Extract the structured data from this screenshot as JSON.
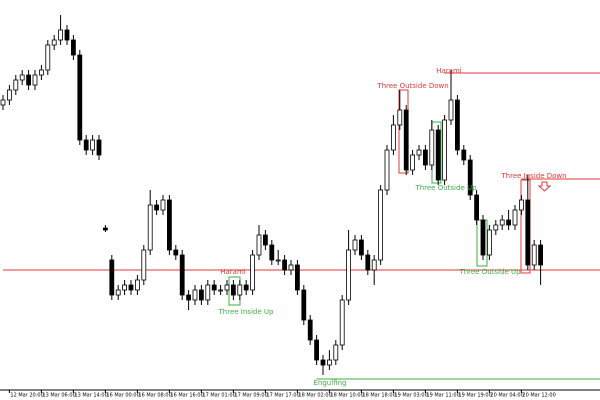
{
  "chart_data": {
    "type": "candlestick",
    "ylim": [
      10,
      400
    ],
    "bull_color": "#ffffff",
    "bear_color": "#000000",
    "outline_color": "#000000",
    "xticks": [
      {
        "value": 1,
        "label": "12 Mar 20:00"
      },
      {
        "value": 6,
        "label": "13 Mar 06:00"
      },
      {
        "value": 11,
        "label": "13 Mar 14:00"
      },
      {
        "value": 16,
        "label": "16 Mar 00:00"
      },
      {
        "value": 21,
        "label": "16 Mar 08:00"
      },
      {
        "value": 26,
        "label": "16 Mar 16:00"
      },
      {
        "value": 31,
        "label": "17 Mar 01:00"
      },
      {
        "value": 36,
        "label": "17 Mar 09:00"
      },
      {
        "value": 41,
        "label": "17 Mar 17:00"
      },
      {
        "value": 46,
        "label": "18 Mar 02:00"
      },
      {
        "value": 51,
        "label": "18 Mar 10:00"
      },
      {
        "value": 56,
        "label": "18 Mar 18:00"
      },
      {
        "value": 61,
        "label": "19 Mar 03:00"
      },
      {
        "value": 66,
        "label": "19 Mar 11:00"
      },
      {
        "value": 71,
        "label": "19 Mar 19:00"
      },
      {
        "value": 76,
        "label": "20 Mar 04:00"
      },
      {
        "value": 81,
        "label": "20 Mar 12:00"
      }
    ],
    "ohlc": [
      [
        295,
        305,
        290,
        300
      ],
      [
        300,
        315,
        295,
        310
      ],
      [
        310,
        325,
        305,
        320
      ],
      [
        320,
        330,
        315,
        325
      ],
      [
        325,
        330,
        310,
        315
      ],
      [
        315,
        330,
        310,
        325
      ],
      [
        325,
        335,
        320,
        330
      ],
      [
        330,
        360,
        325,
        355
      ],
      [
        355,
        365,
        350,
        360
      ],
      [
        360,
        385,
        355,
        370
      ],
      [
        370,
        375,
        355,
        360
      ],
      [
        360,
        365,
        340,
        345
      ],
      [
        345,
        350,
        255,
        260
      ],
      [
        260,
        265,
        245,
        250
      ],
      [
        250,
        265,
        245,
        260
      ],
      [
        260,
        265,
        240,
        245
      ],
      [
        172,
        175,
        168,
        170
      ],
      [
        140,
        145,
        100,
        105
      ],
      [
        105,
        115,
        100,
        110
      ],
      [
        110,
        120,
        105,
        115
      ],
      [
        115,
        120,
        105,
        110
      ],
      [
        110,
        125,
        105,
        120
      ],
      [
        120,
        155,
        115,
        150
      ],
      [
        150,
        210,
        145,
        195
      ],
      [
        195,
        200,
        185,
        190
      ],
      [
        190,
        205,
        185,
        200
      ],
      [
        200,
        205,
        145,
        150
      ],
      [
        150,
        155,
        140,
        145
      ],
      [
        145,
        150,
        100,
        105
      ],
      [
        105,
        110,
        90,
        100
      ],
      [
        100,
        115,
        95,
        110
      ],
      [
        110,
        115,
        95,
        100
      ],
      [
        100,
        120,
        95,
        115
      ],
      [
        115,
        120,
        105,
        110
      ],
      [
        110,
        115,
        105,
        110
      ],
      [
        110,
        120,
        105,
        115
      ],
      [
        115,
        120,
        100,
        105
      ],
      [
        105,
        120,
        100,
        115
      ],
      [
        115,
        120,
        105,
        110
      ],
      [
        110,
        150,
        105,
        145
      ],
      [
        145,
        175,
        140,
        165
      ],
      [
        165,
        170,
        150,
        155
      ],
      [
        155,
        160,
        135,
        140
      ],
      [
        140,
        150,
        135,
        140
      ],
      [
        140,
        145,
        125,
        130
      ],
      [
        130,
        140,
        125,
        135
      ],
      [
        135,
        140,
        105,
        110
      ],
      [
        110,
        115,
        75,
        80
      ],
      [
        80,
        85,
        55,
        60
      ],
      [
        60,
        65,
        35,
        40
      ],
      [
        40,
        45,
        25,
        35
      ],
      [
        35,
        50,
        30,
        40
      ],
      [
        40,
        60,
        35,
        55
      ],
      [
        55,
        105,
        50,
        100
      ],
      [
        100,
        170,
        95,
        150
      ],
      [
        150,
        165,
        145,
        160
      ],
      [
        160,
        165,
        140,
        145
      ],
      [
        145,
        150,
        125,
        130
      ],
      [
        130,
        145,
        115,
        140
      ],
      [
        140,
        215,
        135,
        210
      ],
      [
        210,
        255,
        205,
        250
      ],
      [
        250,
        285,
        245,
        275
      ],
      [
        275,
        310,
        270,
        290
      ],
      [
        290,
        295,
        225,
        230
      ],
      [
        230,
        250,
        225,
        245
      ],
      [
        245,
        255,
        240,
        250
      ],
      [
        250,
        255,
        230,
        235
      ],
      [
        235,
        280,
        230,
        270
      ],
      [
        270,
        275,
        215,
        220
      ],
      [
        220,
        285,
        215,
        280
      ],
      [
        280,
        330,
        275,
        300
      ],
      [
        300,
        305,
        245,
        250
      ],
      [
        250,
        255,
        235,
        240
      ],
      [
        240,
        245,
        200,
        205
      ],
      [
        205,
        210,
        175,
        180
      ],
      [
        180,
        185,
        140,
        145
      ],
      [
        145,
        175,
        140,
        170
      ],
      [
        170,
        180,
        165,
        175
      ],
      [
        175,
        185,
        170,
        180
      ],
      [
        180,
        190,
        170,
        175
      ],
      [
        175,
        195,
        170,
        190
      ],
      [
        190,
        205,
        185,
        200
      ],
      [
        200,
        225,
        130,
        135
      ],
      [
        135,
        160,
        130,
        155
      ],
      [
        155,
        160,
        115,
        135
      ]
    ],
    "levels": [
      {
        "value": 130,
        "from": 0,
        "color": "#e03a3a"
      },
      {
        "value": 327,
        "from": 69,
        "color": "#e03a3a"
      },
      {
        "value": 221,
        "from": 81,
        "color": "#e03a3a"
      },
      {
        "value": 21,
        "from": 49,
        "color": "#3cb043"
      }
    ],
    "annotations": [
      {
        "text": "Harami",
        "color": "#e03a3a"
      },
      {
        "text": "Three Inside Up",
        "color": "#3cb043"
      },
      {
        "text": "Engulfing",
        "color": "#3cb043"
      },
      {
        "text": "Three Outside Down",
        "color": "#e03a3a"
      },
      {
        "text": "Harami",
        "color": "#e03a3a"
      },
      {
        "text": "Three Outside Up",
        "color": "#3cb043"
      },
      {
        "text": "Three Inside Down",
        "color": "#e03a3a"
      },
      {
        "text": "Three Outside Up",
        "color": "#3cb043"
      }
    ]
  }
}
